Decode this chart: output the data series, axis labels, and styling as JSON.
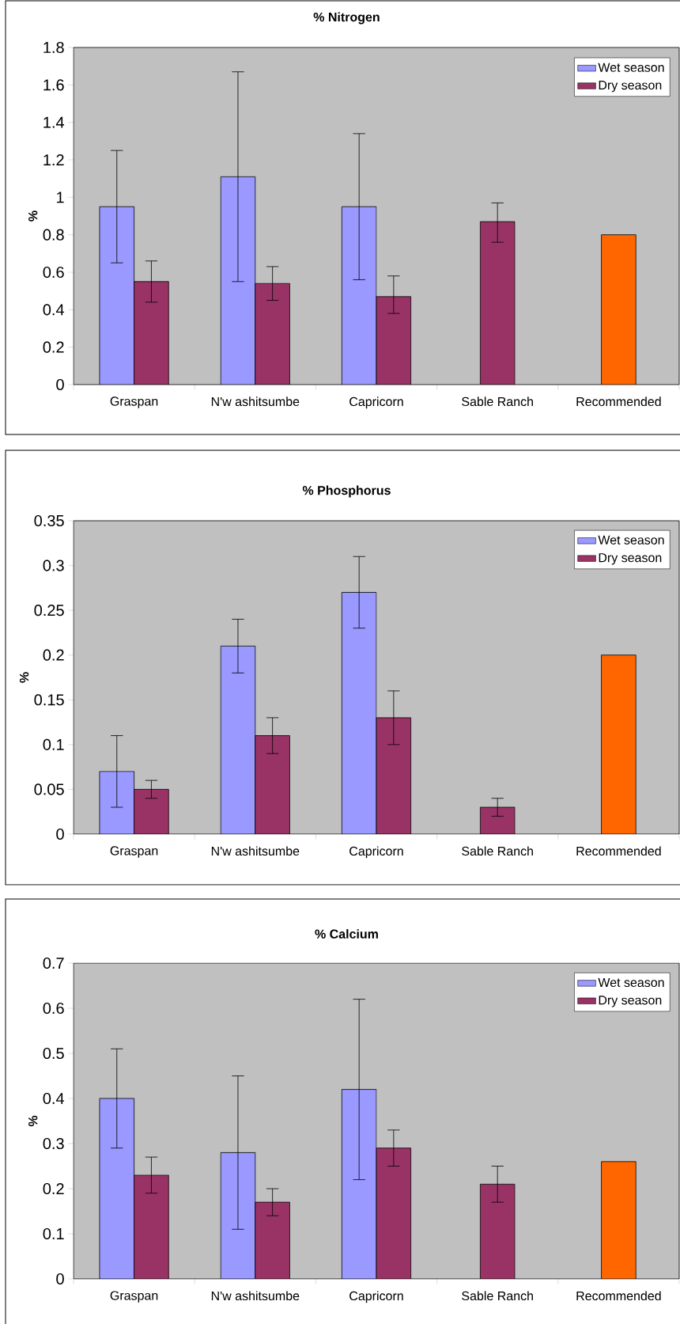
{
  "chart_data": [
    {
      "type": "bar",
      "title": "% Nitrogen",
      "ylabel": "%",
      "categories": [
        "Graspan",
        "N'w ashitsumbe",
        "Capricorn",
        "Sable Ranch",
        "Recommended"
      ],
      "series": [
        {
          "name": "Wet season",
          "color": "#9999ff",
          "values": [
            0.95,
            1.11,
            0.95,
            null,
            null
          ],
          "errors": [
            [
              0.65,
              1.25
            ],
            [
              0.55,
              1.67
            ],
            [
              0.56,
              1.34
            ],
            null,
            null
          ]
        },
        {
          "name": "Dry season",
          "color": "#993366",
          "values": [
            0.55,
            0.54,
            0.47,
            0.87,
            null
          ],
          "errors": [
            [
              0.44,
              0.66
            ],
            [
              0.45,
              0.63
            ],
            [
              0.38,
              0.58
            ],
            [
              0.76,
              0.97
            ],
            null
          ]
        },
        {
          "color": "#ff6600",
          "values": [
            null,
            null,
            null,
            null,
            0.8
          ]
        }
      ],
      "ylim": [
        0,
        1.8
      ],
      "yticks": [
        0,
        0.2,
        0.4,
        0.6,
        0.8,
        1,
        1.2,
        1.4,
        1.6,
        1.8
      ],
      "legend": "top right"
    },
    {
      "type": "bar",
      "title": "% Phosphorus",
      "ylabel": "%",
      "categories": [
        "Graspan",
        "N'w ashitsumbe",
        "Capricorn",
        "Sable Ranch",
        "Recommended"
      ],
      "series": [
        {
          "name": "Wet season",
          "color": "#9999ff",
          "values": [
            0.07,
            0.21,
            0.27,
            null,
            null
          ],
          "errors": [
            [
              0.03,
              0.11
            ],
            [
              0.18,
              0.24
            ],
            [
              0.23,
              0.31
            ],
            null,
            null
          ]
        },
        {
          "name": "Dry season",
          "color": "#993366",
          "values": [
            0.05,
            0.11,
            0.13,
            0.03,
            null
          ],
          "errors": [
            [
              0.04,
              0.06
            ],
            [
              0.09,
              0.13
            ],
            [
              0.1,
              0.16
            ],
            [
              0.02,
              0.04
            ],
            null
          ]
        },
        {
          "color": "#ff6600",
          "values": [
            null,
            null,
            null,
            null,
            0.2
          ]
        }
      ],
      "ylim": [
        0,
        0.35
      ],
      "yticks": [
        0,
        0.05,
        0.1,
        0.15,
        0.2,
        0.25,
        0.3,
        0.35
      ],
      "legend": "top right"
    },
    {
      "type": "bar",
      "title": "% Calcium",
      "ylabel": "%",
      "categories": [
        "Graspan",
        "N'w ashitsumbe",
        "Capricorn",
        "Sable Ranch",
        "Recommended"
      ],
      "series": [
        {
          "name": "Wet season",
          "color": "#9999ff",
          "values": [
            0.4,
            0.28,
            0.42,
            null,
            null
          ],
          "errors": [
            [
              0.29,
              0.51
            ],
            [
              0.11,
              0.45
            ],
            [
              0.22,
              0.62
            ],
            null,
            null
          ]
        },
        {
          "name": "Dry season",
          "color": "#993366",
          "values": [
            0.23,
            0.17,
            0.29,
            0.21,
            null
          ],
          "errors": [
            [
              0.19,
              0.27
            ],
            [
              0.14,
              0.2
            ],
            [
              0.25,
              0.33
            ],
            [
              0.17,
              0.25
            ],
            null
          ]
        },
        {
          "color": "#ff6600",
          "values": [
            null,
            null,
            null,
            null,
            0.26
          ]
        }
      ],
      "ylim": [
        0,
        0.7
      ],
      "yticks": [
        0,
        0.1,
        0.2,
        0.3,
        0.4,
        0.5,
        0.6,
        0.7
      ],
      "legend": "top right"
    }
  ]
}
